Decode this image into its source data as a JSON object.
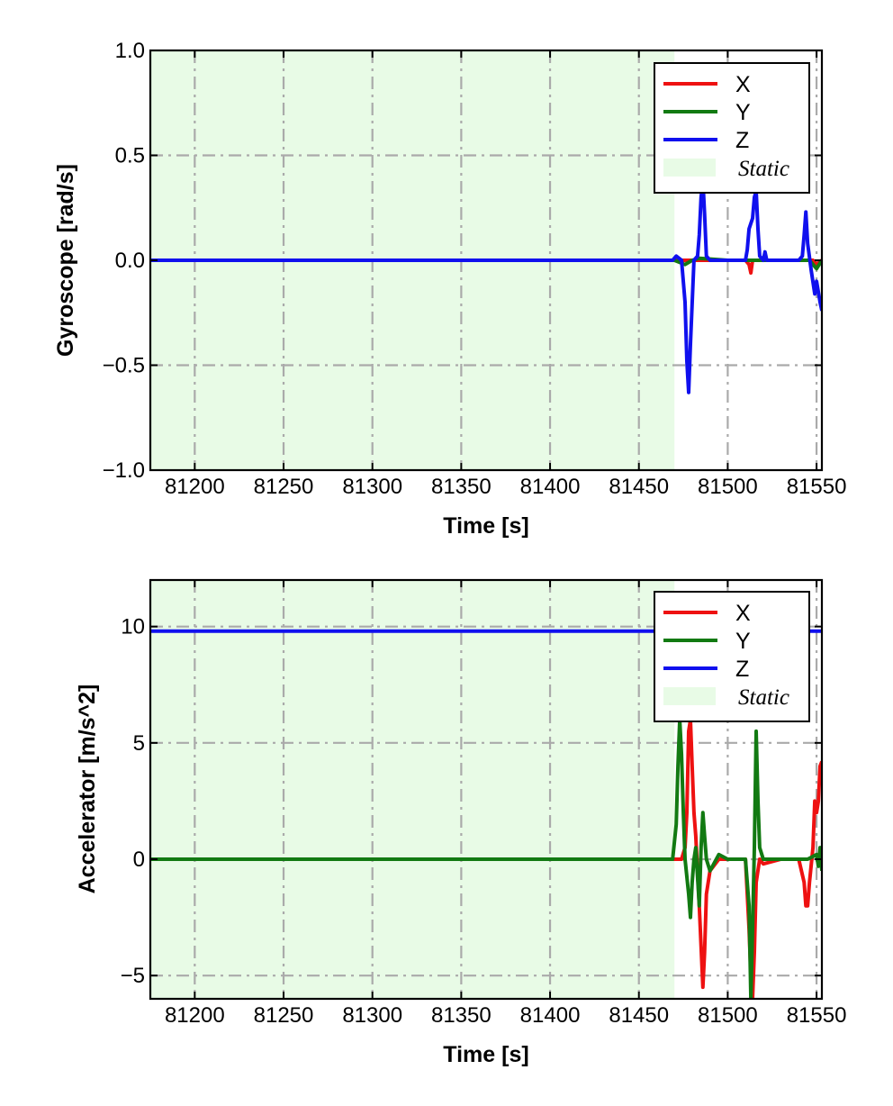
{
  "chart_data": [
    {
      "type": "line",
      "xlabel": "Time [s]",
      "ylabel": "Gyroscope [rad/s]",
      "xlim": [
        81175,
        81553
      ],
      "ylim": [
        -1.0,
        1.0
      ],
      "xticks": [
        81200,
        81250,
        81300,
        81350,
        81400,
        81450,
        81500,
        81550
      ],
      "xtick_labels": [
        "81200",
        "81250",
        "81300",
        "81350",
        "81400",
        "81450",
        "81500",
        "81550"
      ],
      "yticks": [
        -1.0,
        -0.5,
        0.0,
        0.5,
        1.0
      ],
      "ytick_labels": [
        "−1.0",
        "−0.5",
        "0.0",
        "0.5",
        "1.0"
      ],
      "grid": true,
      "legend_position": "top-right",
      "static_region": {
        "label": "Static",
        "x_start": 81175,
        "x_end": 81470,
        "color": "#e8fbe6"
      },
      "series": [
        {
          "name": "X",
          "color": "#ee1111",
          "x": [
            81175,
            81470,
            81478,
            81490,
            81510,
            81512,
            81513,
            81514,
            81520,
            81540,
            81548,
            81550,
            81553
          ],
          "y": [
            0.0,
            0.0,
            0.0,
            0.0,
            0.0,
            -0.02,
            -0.06,
            0.0,
            0.0,
            0.0,
            0.0,
            -0.02,
            0.0
          ]
        },
        {
          "name": "Y",
          "color": "#127a12",
          "x": [
            81175,
            81470,
            81476,
            81480,
            81484,
            81500,
            81520,
            81540,
            81546,
            81550,
            81553
          ],
          "y": [
            0.0,
            0.0,
            -0.02,
            0.0,
            0.01,
            0.0,
            0.0,
            0.0,
            0.0,
            -0.04,
            0.0
          ]
        },
        {
          "name": "Z",
          "color": "#1010ee",
          "x": [
            81175,
            81469,
            81471,
            81474,
            81476,
            81477,
            81478,
            81479,
            81481,
            81483,
            81484,
            81485,
            81486,
            81487,
            81488,
            81490,
            81500,
            81510,
            81511,
            81512,
            81514,
            81515,
            81516,
            81517,
            81518,
            81520,
            81521,
            81522,
            81524,
            81530,
            81540,
            81542,
            81543,
            81544,
            81545,
            81547,
            81549,
            81550,
            81552,
            81553
          ],
          "y": [
            0.0,
            0.0,
            0.02,
            0.0,
            -0.2,
            -0.48,
            -0.63,
            -0.4,
            0.0,
            0.02,
            0.12,
            0.3,
            0.38,
            0.22,
            0.02,
            0.0,
            0.0,
            0.0,
            0.05,
            0.15,
            0.2,
            0.3,
            0.33,
            0.15,
            0.02,
            0.0,
            0.04,
            0.0,
            0.0,
            0.0,
            0.0,
            0.02,
            0.12,
            0.23,
            0.08,
            -0.05,
            -0.16,
            -0.1,
            -0.2,
            -0.24
          ]
        }
      ]
    },
    {
      "type": "line",
      "xlabel": "Time [s]",
      "ylabel": "Accelerator [m/s^2]",
      "xlim": [
        81175,
        81553
      ],
      "ylim": [
        -6,
        12
      ],
      "xticks": [
        81200,
        81250,
        81300,
        81350,
        81400,
        81450,
        81500,
        81550
      ],
      "xtick_labels": [
        "81200",
        "81250",
        "81300",
        "81350",
        "81400",
        "81450",
        "81500",
        "81550"
      ],
      "yticks": [
        -5,
        0,
        5,
        10
      ],
      "ytick_labels": [
        "−5",
        "0",
        "5",
        "10"
      ],
      "grid": true,
      "legend_position": "top-right",
      "static_region": {
        "label": "Static",
        "x_start": 81175,
        "x_end": 81470,
        "color": "#e8fbe6"
      },
      "series": [
        {
          "name": "X",
          "color": "#ee1111",
          "x": [
            81175,
            81470,
            81474,
            81476,
            81477,
            81478,
            81479,
            81480,
            81481,
            81482,
            81484,
            81486,
            81487,
            81488,
            81490,
            81495,
            81505,
            81510,
            81512,
            81513,
            81514,
            81515,
            81516,
            81518,
            81520,
            81530,
            81540,
            81543,
            81544,
            81545,
            81546,
            81548,
            81549,
            81550,
            81551,
            81552,
            81553
          ],
          "y": [
            0.0,
            0.0,
            0.0,
            0.5,
            2.0,
            5.5,
            6.0,
            4.0,
            2.0,
            1.0,
            -2.0,
            -5.5,
            -4.0,
            -1.5,
            -0.5,
            0.0,
            0.0,
            0.0,
            -3.0,
            -5.0,
            -6.0,
            -4.0,
            -1.0,
            0.0,
            -0.2,
            0.0,
            0.0,
            -1.0,
            -2.0,
            -2.0,
            -1.0,
            0.5,
            2.5,
            2.0,
            2.5,
            4.0,
            4.2
          ]
        },
        {
          "name": "Y",
          "color": "#127a12",
          "x": [
            81175,
            81469,
            81471,
            81472,
            81473,
            81474,
            81475,
            81476,
            81478,
            81479,
            81480,
            81481,
            81482,
            81484,
            81485,
            81486,
            81487,
            81488,
            81490,
            81495,
            81500,
            81505,
            81510,
            81512,
            81513,
            81514,
            81515,
            81516,
            81517,
            81518,
            81520,
            81530,
            81545,
            81550,
            81551,
            81552,
            81553
          ],
          "y": [
            0.0,
            0.0,
            1.5,
            4.0,
            6.0,
            4.5,
            2.0,
            0.0,
            -1.5,
            -2.5,
            -1.0,
            0.0,
            0.5,
            -2.0,
            0.5,
            2.0,
            1.0,
            0.0,
            -0.5,
            0.2,
            0.0,
            0.0,
            0.0,
            -2.0,
            -6.0,
            -3.0,
            0.5,
            5.5,
            2.5,
            0.5,
            0.0,
            0.0,
            0.0,
            0.2,
            -0.3,
            0.5,
            -0.5
          ]
        },
        {
          "name": "Z",
          "color": "#1010ee",
          "x": [
            81175,
            81553
          ],
          "y": [
            9.8,
            9.8
          ]
        }
      ]
    }
  ]
}
